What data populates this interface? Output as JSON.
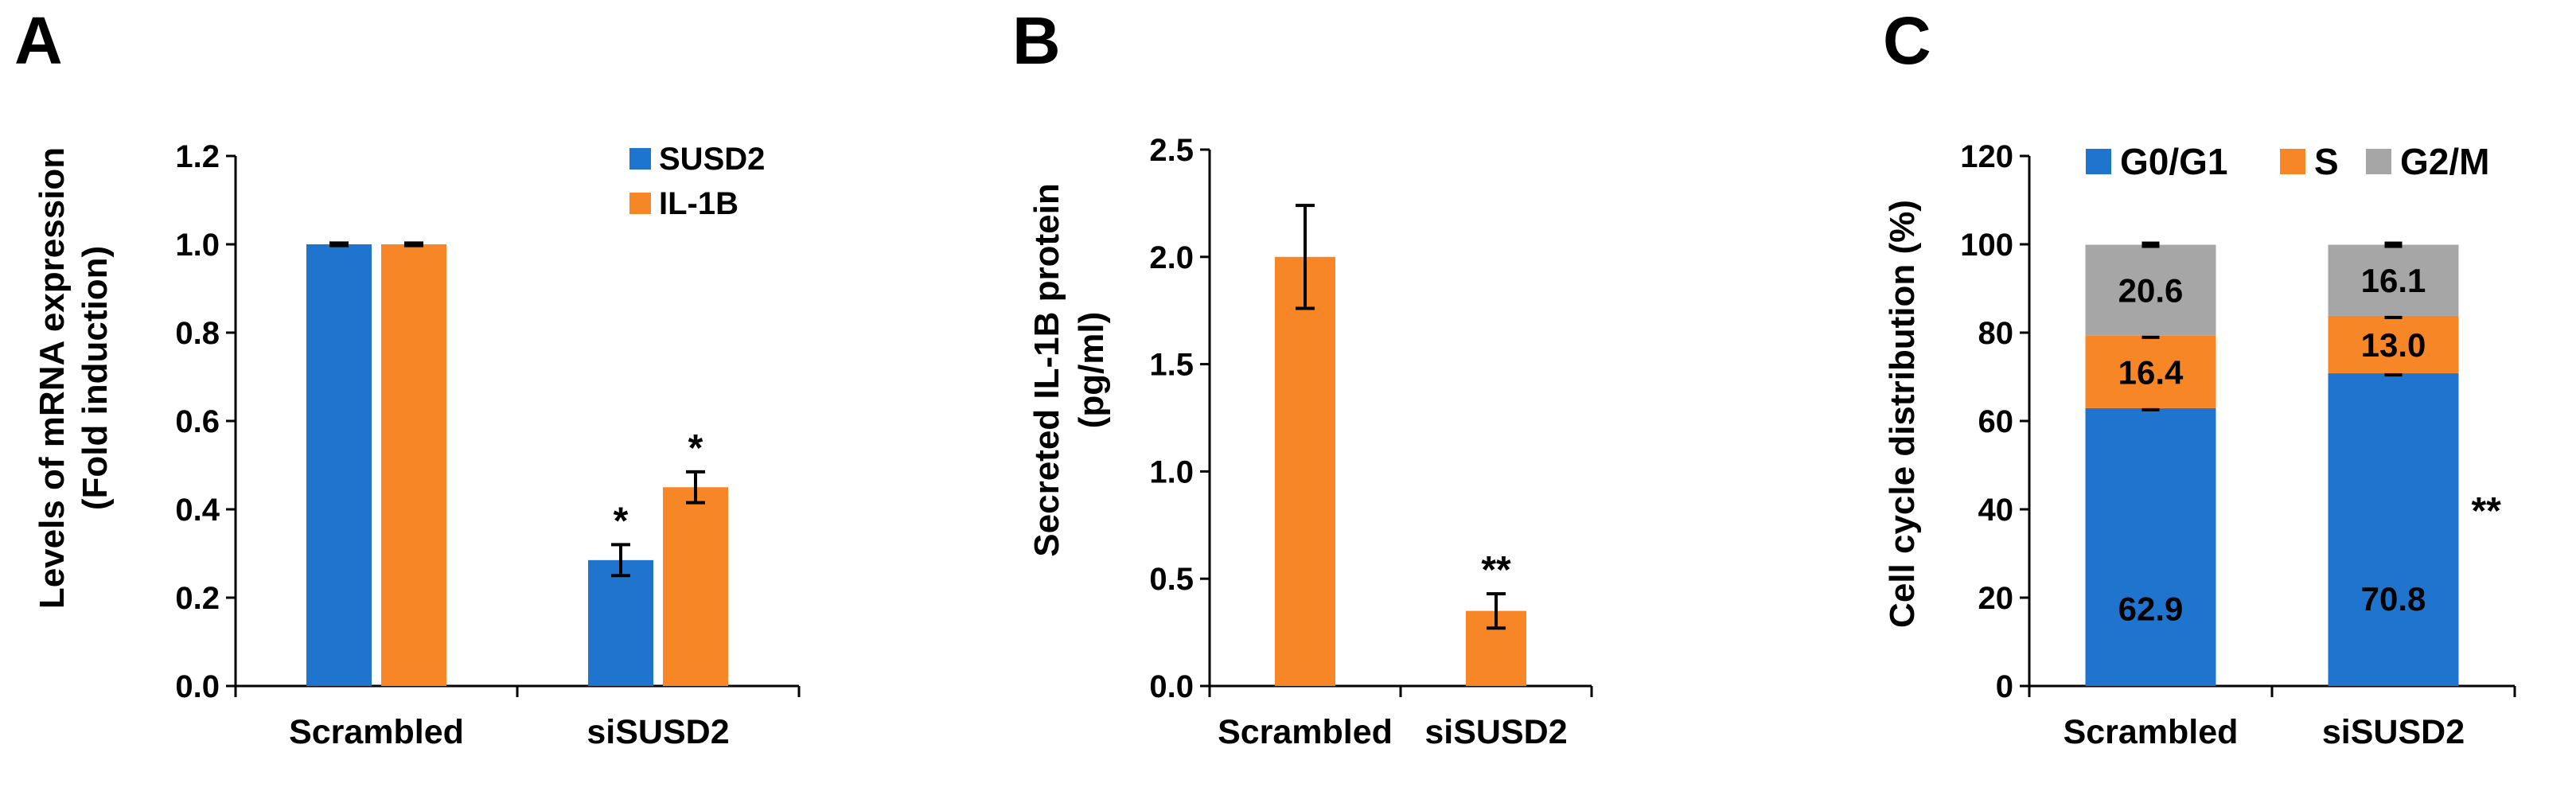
{
  "colors": {
    "blue": "#1f74cd",
    "orange": "#f78626",
    "gray": "#a6a6a6",
    "axis": "#000000"
  },
  "chart_data": [
    {
      "panel": "A",
      "type": "bar",
      "ylabel": [
        "Levels of mRNA expression",
        "(Fold induction)"
      ],
      "ylim": [
        0,
        1.2
      ],
      "yticks": [
        "0.0",
        "0.2",
        "0.4",
        "0.6",
        "0.8",
        "1.0",
        "1.2"
      ],
      "categories": [
        "Scrambled",
        "siSUSD2"
      ],
      "legend_position": "top-right",
      "series": [
        {
          "name": "SUSD2",
          "color": "#1f74cd",
          "values": [
            1.0,
            0.285
          ],
          "errors": [
            0.003,
            0.035
          ],
          "annotations": [
            "",
            "*"
          ]
        },
        {
          "name": "IL-1B",
          "color": "#f78626",
          "values": [
            1.0,
            0.45
          ],
          "errors": [
            0.003,
            0.035
          ],
          "annotations": [
            "",
            "*"
          ]
        }
      ]
    },
    {
      "panel": "B",
      "type": "bar",
      "ylabel": [
        "Secreted IL-1B protein",
        "(pg/ml)"
      ],
      "ylim": [
        0,
        2.5
      ],
      "yticks": [
        "0.0",
        "0.5",
        "1.0",
        "1.5",
        "2.0",
        "2.5"
      ],
      "categories": [
        "Scrambled",
        "siSUSD2"
      ],
      "series": [
        {
          "color": "#f78626",
          "values": [
            2.0,
            0.35
          ],
          "errors": [
            0.24,
            0.08
          ],
          "annotations": [
            "",
            "**"
          ]
        }
      ]
    },
    {
      "panel": "C",
      "type": "bar",
      "stacked": true,
      "ylabel": [
        "Cell cycle distribution (%)"
      ],
      "ylim": [
        0,
        120
      ],
      "yticks": [
        "0",
        "20",
        "40",
        "60",
        "80",
        "100",
        "120"
      ],
      "categories": [
        "Scrambled",
        "siSUSD2"
      ],
      "legend_position": "top",
      "annotations": [
        "",
        "**"
      ],
      "series": [
        {
          "name": "G0/G1",
          "color": "#1f74cd",
          "values": [
            62.9,
            70.8
          ],
          "labels": [
            "62.9",
            "70.8"
          ]
        },
        {
          "name": "S",
          "color": "#f78626",
          "values": [
            16.4,
            13.0
          ],
          "labels": [
            "16.4",
            "13.0"
          ]
        },
        {
          "name": "G2/M",
          "color": "#a6a6a6",
          "values": [
            20.6,
            16.1
          ],
          "labels": [
            "20.6",
            "16.1"
          ]
        }
      ]
    }
  ]
}
